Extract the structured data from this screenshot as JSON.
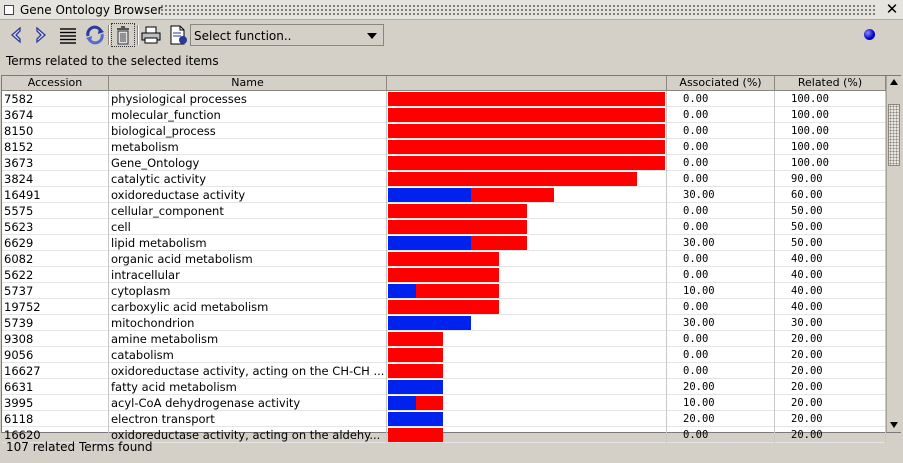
{
  "window": {
    "title": "Gene Ontology Browser",
    "close_glyph": "✕"
  },
  "toolbar": {
    "buttons": [
      {
        "name": "back-icon"
      },
      {
        "name": "forward-icon"
      },
      {
        "name": "list-icon"
      },
      {
        "name": "refresh-icon"
      },
      {
        "name": "trash-icon"
      },
      {
        "name": "print-icon"
      },
      {
        "name": "export-icon"
      }
    ],
    "function_select": {
      "value": "Select function.."
    },
    "status_indicator_color": "#0000c8"
  },
  "panel_label": "Terms related to the selected items",
  "table": {
    "columns": [
      "Accession",
      "Name",
      "",
      "Associated (%)",
      "Related (%)"
    ],
    "colors": {
      "associated": "#0022ee",
      "related": "#ff0000"
    },
    "rows": [
      {
        "accession": "7582",
        "name": "physiological processes",
        "associated": "0.00",
        "related": "100.00",
        "assoc_frac": 0.0,
        "rel_frac": 1.0
      },
      {
        "accession": "3674",
        "name": "molecular_function",
        "associated": "0.00",
        "related": "100.00",
        "assoc_frac": 0.0,
        "rel_frac": 1.0
      },
      {
        "accession": "8150",
        "name": "biological_process",
        "associated": "0.00",
        "related": "100.00",
        "assoc_frac": 0.0,
        "rel_frac": 1.0
      },
      {
        "accession": "8152",
        "name": "metabolism",
        "associated": "0.00",
        "related": "100.00",
        "assoc_frac": 0.0,
        "rel_frac": 1.0
      },
      {
        "accession": "3673",
        "name": "Gene_Ontology",
        "associated": "0.00",
        "related": "100.00",
        "assoc_frac": 0.0,
        "rel_frac": 1.0
      },
      {
        "accession": "3824",
        "name": "catalytic activity",
        "associated": "0.00",
        "related": "90.00",
        "assoc_frac": 0.0,
        "rel_frac": 0.9
      },
      {
        "accession": "16491",
        "name": "oxidoreductase activity",
        "associated": "30.00",
        "related": "60.00",
        "assoc_frac": 0.3,
        "rel_frac": 0.6
      },
      {
        "accession": "5575",
        "name": "cellular_component",
        "associated": "0.00",
        "related": "50.00",
        "assoc_frac": 0.0,
        "rel_frac": 0.5
      },
      {
        "accession": "5623",
        "name": "cell",
        "associated": "0.00",
        "related": "50.00",
        "assoc_frac": 0.0,
        "rel_frac": 0.5
      },
      {
        "accession": "6629",
        "name": "lipid metabolism",
        "associated": "30.00",
        "related": "50.00",
        "assoc_frac": 0.3,
        "rel_frac": 0.5
      },
      {
        "accession": "6082",
        "name": "organic acid metabolism",
        "associated": "0.00",
        "related": "40.00",
        "assoc_frac": 0.0,
        "rel_frac": 0.4
      },
      {
        "accession": "5622",
        "name": "intracellular",
        "associated": "0.00",
        "related": "40.00",
        "assoc_frac": 0.0,
        "rel_frac": 0.4
      },
      {
        "accession": "5737",
        "name": "cytoplasm",
        "associated": "10.00",
        "related": "40.00",
        "assoc_frac": 0.1,
        "rel_frac": 0.4
      },
      {
        "accession": "19752",
        "name": "carboxylic acid metabolism",
        "associated": "0.00",
        "related": "40.00",
        "assoc_frac": 0.0,
        "rel_frac": 0.4
      },
      {
        "accession": "5739",
        "name": "mitochondrion",
        "associated": "30.00",
        "related": "30.00",
        "assoc_frac": 0.3,
        "rel_frac": 0.3
      },
      {
        "accession": "9308",
        "name": "amine metabolism",
        "associated": "0.00",
        "related": "20.00",
        "assoc_frac": 0.0,
        "rel_frac": 0.2
      },
      {
        "accession": "9056",
        "name": "catabolism",
        "associated": "0.00",
        "related": "20.00",
        "assoc_frac": 0.0,
        "rel_frac": 0.2
      },
      {
        "accession": "16627",
        "name": "oxidoreductase activity, acting on the CH-CH ...",
        "associated": "0.00",
        "related": "20.00",
        "assoc_frac": 0.0,
        "rel_frac": 0.2
      },
      {
        "accession": "6631",
        "name": "fatty acid metabolism",
        "associated": "20.00",
        "related": "20.00",
        "assoc_frac": 0.2,
        "rel_frac": 0.2
      },
      {
        "accession": "3995",
        "name": "acyl-CoA dehydrogenase activity",
        "associated": "10.00",
        "related": "20.00",
        "assoc_frac": 0.1,
        "rel_frac": 0.2
      },
      {
        "accession": "6118",
        "name": "electron transport",
        "associated": "20.00",
        "related": "20.00",
        "assoc_frac": 0.2,
        "rel_frac": 0.2
      },
      {
        "accession": "16620",
        "name": "oxidoreductase activity, acting on the aldehy...",
        "associated": "0.00",
        "related": "20.00",
        "assoc_frac": 0.0,
        "rel_frac": 0.2
      }
    ]
  },
  "status": "107 related Terms found"
}
